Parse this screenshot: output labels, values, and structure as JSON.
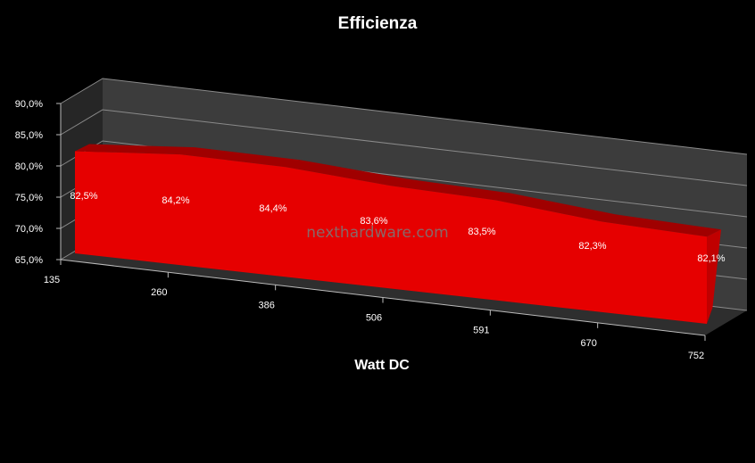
{
  "chart_data": {
    "type": "area",
    "title": "Efficienza",
    "xlabel": "Watt DC",
    "ylabel": "",
    "categories": [
      "135",
      "260",
      "386",
      "506",
      "591",
      "670",
      "752"
    ],
    "series": [
      {
        "values": [
          82.5,
          84.2,
          84.4,
          83.6,
          83.5,
          82.3,
          82.1
        ],
        "labels": [
          "82,5%",
          "84,2%",
          "84,4%",
          "83,6%",
          "83,5%",
          "82,3%",
          "82,1%"
        ]
      }
    ],
    "ylim": [
      65,
      90
    ],
    "yticks": [
      "65,0%",
      "70,0%",
      "75,0%",
      "80,0%",
      "85,0%",
      "90,0%"
    ],
    "grid": true,
    "colors": {
      "area": "#e60000",
      "area_top": "#a00000",
      "area_side": "#c00000",
      "wall": "#3c3c3c"
    }
  },
  "watermark": "nexthardware.com"
}
